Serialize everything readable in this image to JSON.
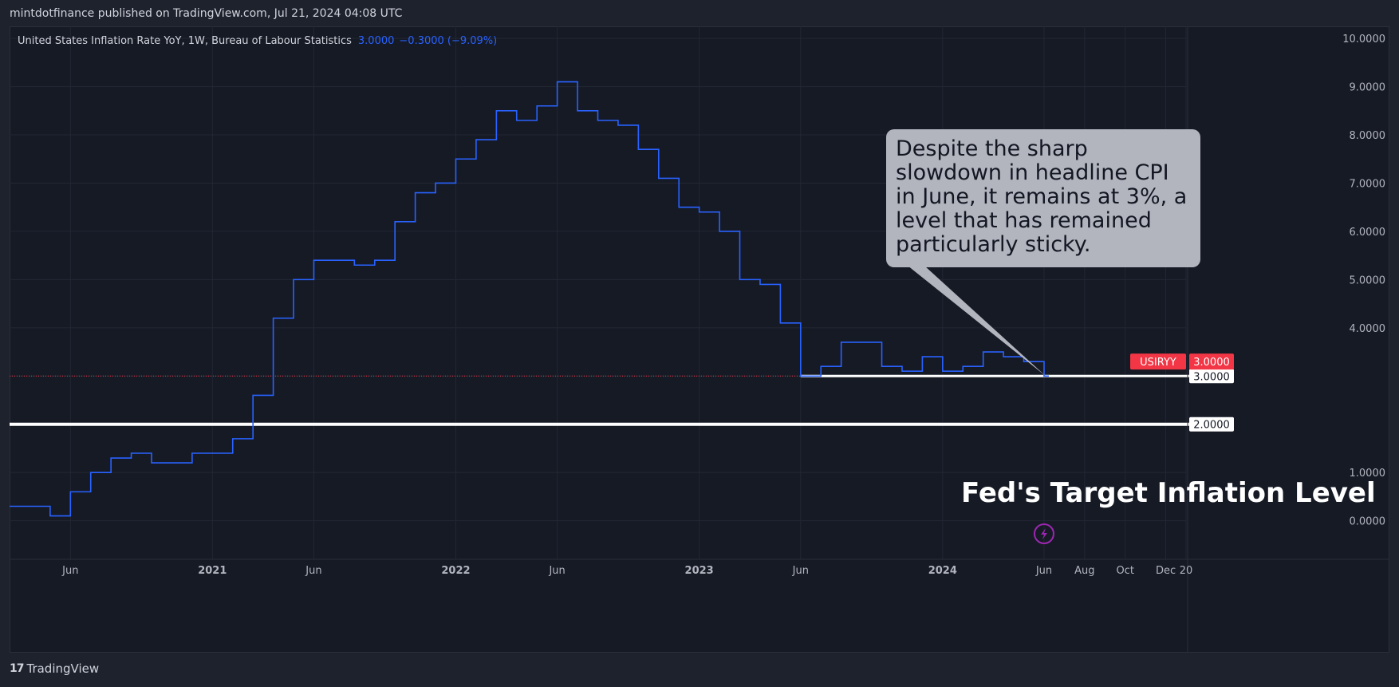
{
  "header": {
    "published": "mintdotfinance published on TradingView.com, Jul 21, 2024 04:08 UTC"
  },
  "legend": {
    "title": "United States Inflation Rate YoY, 1W, Bureau of Labour Statistics",
    "value": "3.0000",
    "change": "−0.3000 (−9.09%)"
  },
  "callout": {
    "text": "Despite the sharp slowdown in headline CPI in June, it remains at 3%, a level that has remained particularly sticky."
  },
  "fed_label": "Fed's Target Inflation Level",
  "footer": {
    "brand": "TradingView",
    "logo": "17"
  },
  "colors": {
    "series": "#2962ff",
    "price_tag": "#f23645",
    "background": "#161a25",
    "callout": "#b2b5be"
  },
  "chart_data": {
    "type": "line",
    "step": true,
    "series": [
      {
        "name": "USIRYY",
        "x": [
          "2020-04",
          "2020-05",
          "2020-06",
          "2020-07",
          "2020-08",
          "2020-09",
          "2020-10",
          "2020-11",
          "2020-12",
          "2021-01",
          "2021-02",
          "2021-03",
          "2021-04",
          "2021-05",
          "2021-06",
          "2021-07",
          "2021-08",
          "2021-09",
          "2021-10",
          "2021-11",
          "2021-12",
          "2022-01",
          "2022-02",
          "2022-03",
          "2022-04",
          "2022-05",
          "2022-06",
          "2022-07",
          "2022-08",
          "2022-09",
          "2022-10",
          "2022-11",
          "2022-12",
          "2023-01",
          "2023-02",
          "2023-03",
          "2023-04",
          "2023-05",
          "2023-06",
          "2023-07",
          "2023-08",
          "2023-09",
          "2023-10",
          "2023-11",
          "2023-12",
          "2024-01",
          "2024-02",
          "2024-03",
          "2024-04",
          "2024-05",
          "2024-06"
        ],
        "values": [
          0.3,
          0.1,
          0.6,
          1.0,
          1.3,
          1.4,
          1.2,
          1.2,
          1.4,
          1.4,
          1.7,
          2.6,
          4.2,
          5.0,
          5.4,
          5.4,
          5.3,
          5.4,
          6.2,
          6.8,
          7.0,
          7.5,
          7.9,
          8.5,
          8.3,
          8.6,
          9.1,
          8.5,
          8.3,
          8.2,
          7.7,
          7.1,
          6.5,
          6.4,
          6.0,
          5.0,
          4.9,
          4.1,
          3.0,
          3.2,
          3.7,
          3.7,
          3.2,
          3.1,
          3.4,
          3.1,
          3.2,
          3.5,
          3.4,
          3.3,
          3.0
        ]
      }
    ],
    "x_ticks": [
      {
        "label": "Jun",
        "x": "2020-06",
        "bold": false
      },
      {
        "label": "2021",
        "x": "2021-01",
        "bold": true
      },
      {
        "label": "Jun",
        "x": "2021-06",
        "bold": false
      },
      {
        "label": "2022",
        "x": "2022-01",
        "bold": true
      },
      {
        "label": "Jun",
        "x": "2022-06",
        "bold": false
      },
      {
        "label": "2023",
        "x": "2023-01",
        "bold": true
      },
      {
        "label": "Jun",
        "x": "2023-06",
        "bold": false
      },
      {
        "label": "2024",
        "x": "2024-01",
        "bold": true
      },
      {
        "label": "Jun",
        "x": "2024-06",
        "bold": false
      },
      {
        "label": "Aug",
        "x": "2024-08",
        "bold": false
      },
      {
        "label": "Oct",
        "x": "2024-10",
        "bold": false
      },
      {
        "label": "Dec",
        "x": "2024-12",
        "bold": false
      },
      {
        "label": "20",
        "x": "2025-01",
        "bold": false
      }
    ],
    "y_ticks": [
      "10.0000",
      "9.0000",
      "8.0000",
      "7.0000",
      "6.0000",
      "5.0000",
      "4.0000",
      "3.0000",
      "2.0000",
      "1.0000",
      "0.0000"
    ],
    "ylim": [
      -0.8,
      10.25
    ],
    "xlim": [
      "2020-03",
      "2025-01"
    ],
    "horizontal_lines": [
      {
        "value": 2.0,
        "label": "2.0000",
        "from": "2020-03"
      },
      {
        "value": 3.0,
        "label": "3.0000",
        "from": "2023-06"
      }
    ],
    "price_tag": {
      "symbol": "USIRYY",
      "value": "3.0000",
      "at": 3.3
    },
    "grid": true
  }
}
